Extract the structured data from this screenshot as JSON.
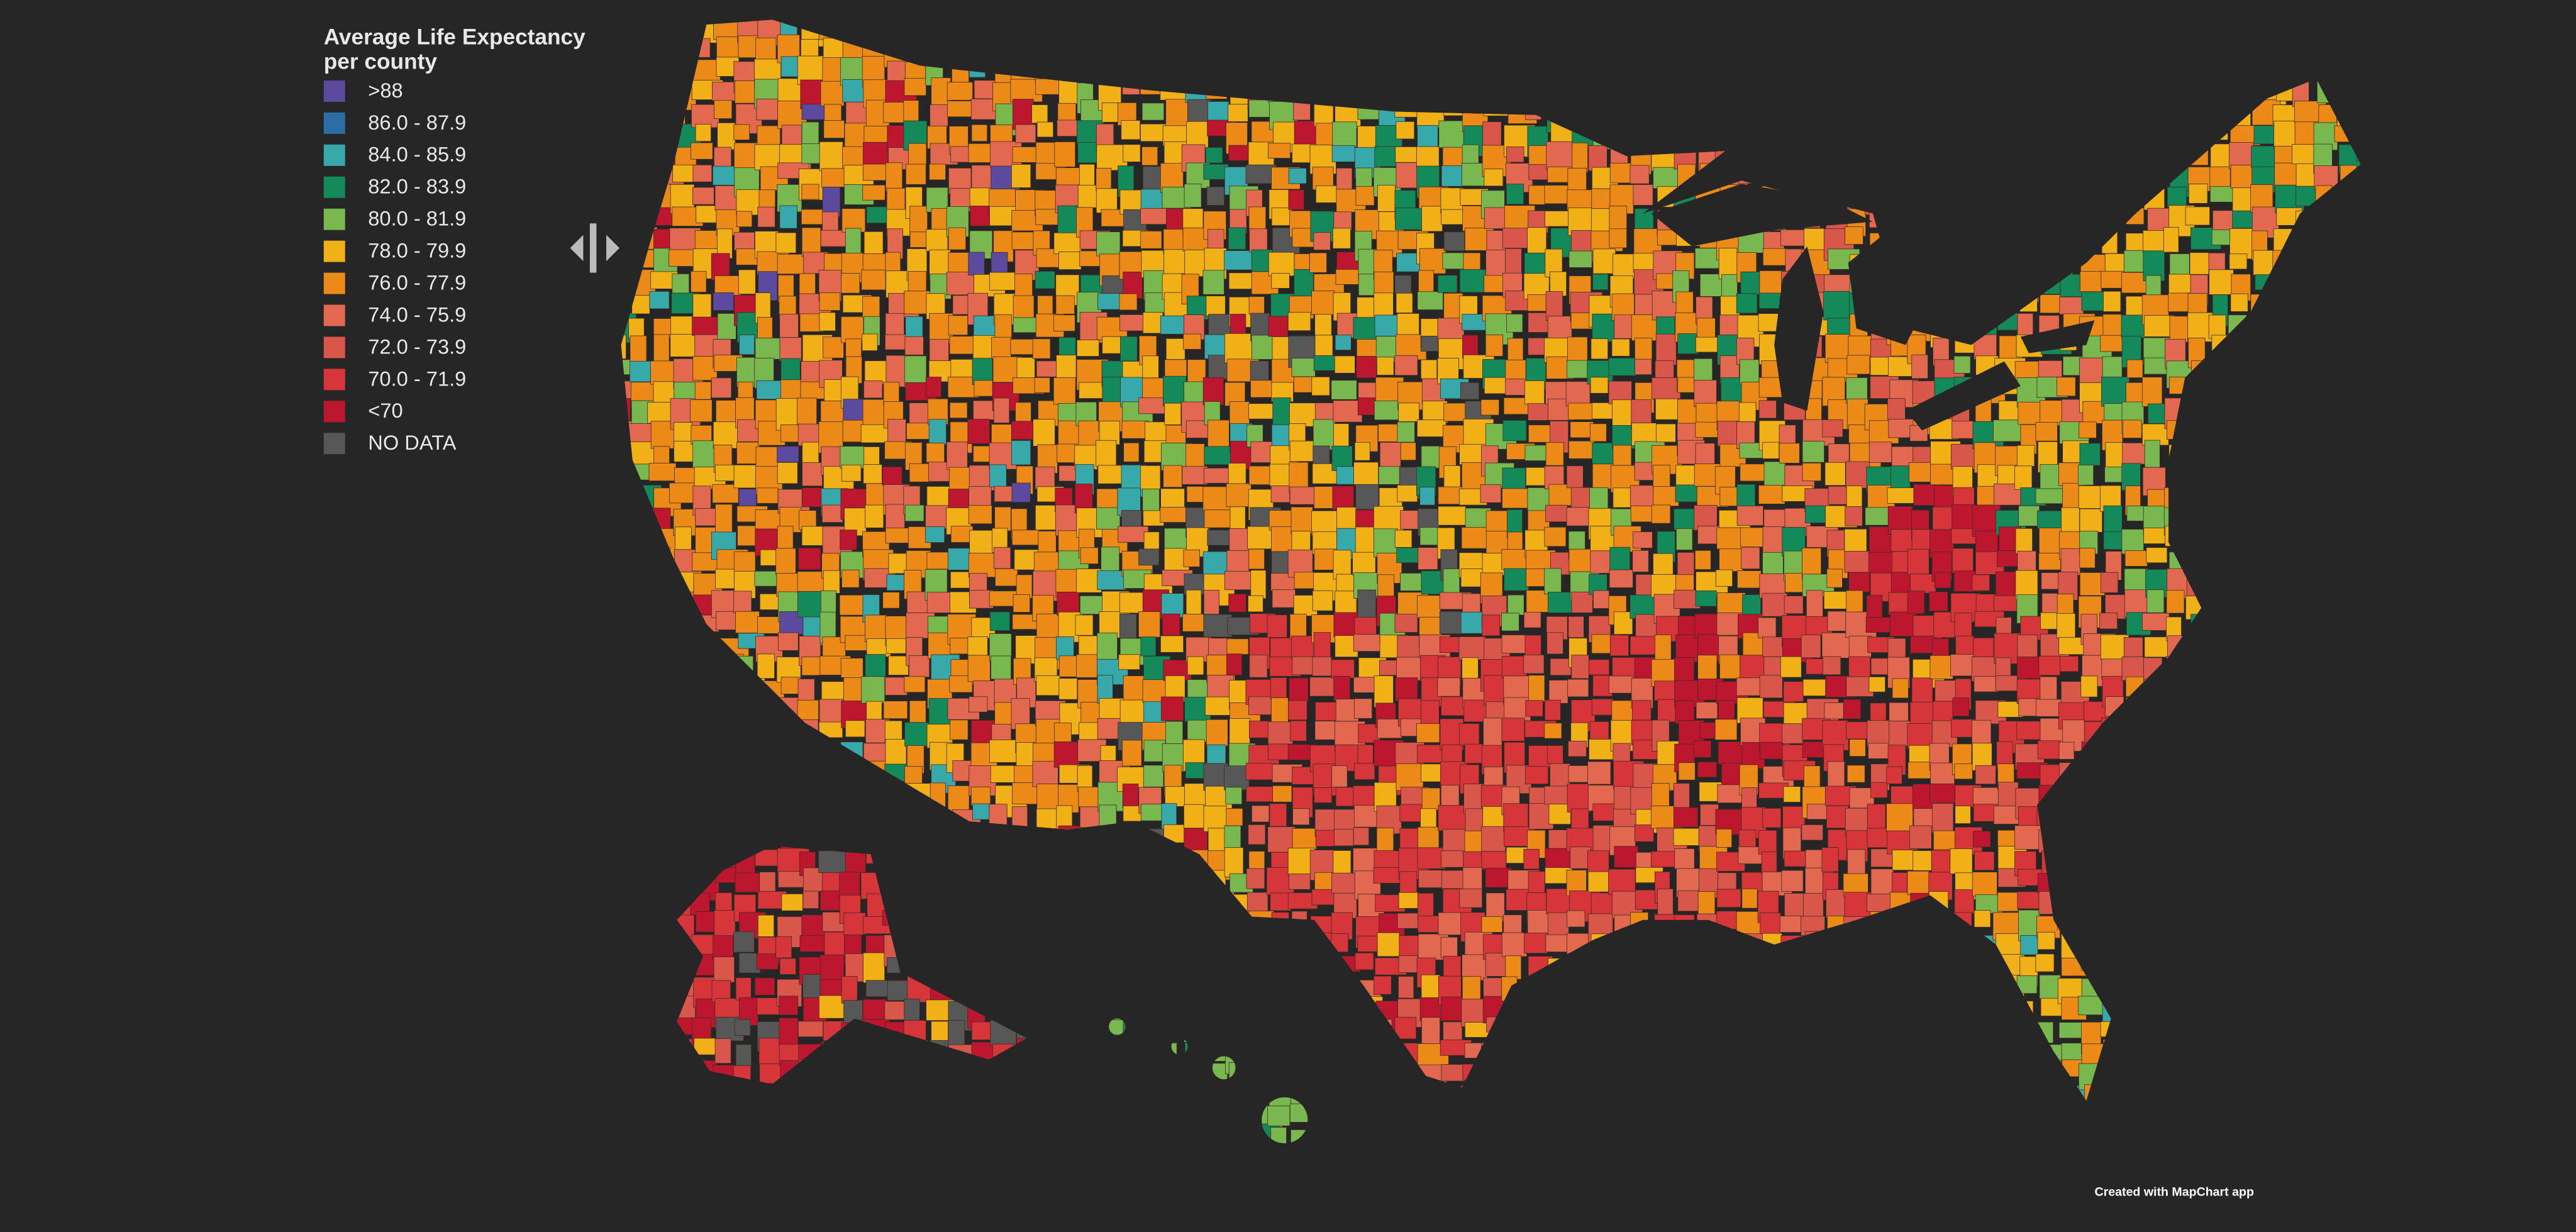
{
  "legend": {
    "title": [
      "Average Life Expectancy",
      "per county"
    ],
    "items": [
      {
        "label": ">88",
        "color": "#5b4a9e"
      },
      {
        "label": "86.0 - 87.9",
        "color": "#2b6ea6"
      },
      {
        "label": "84.0 - 85.9",
        "color": "#38a9aa"
      },
      {
        "label": "82.0 - 83.9",
        "color": "#148a5a"
      },
      {
        "label": "80.0 - 81.9",
        "color": "#78b84f"
      },
      {
        "label": "78.0 - 79.9",
        "color": "#f1b116"
      },
      {
        "label": "76.0 - 77.9",
        "color": "#eb8a17"
      },
      {
        "label": "74.0 - 75.9",
        "color": "#e2684f"
      },
      {
        "label": "72.0 - 73.9",
        "color": "#d9574a"
      },
      {
        "label": "70.0 - 71.9",
        "color": "#d63539"
      },
      {
        "label": "<70",
        "color": "#bd1730"
      },
      {
        "label": "NO DATA",
        "color": "#575757"
      }
    ]
  },
  "credit": "Created with MapChart app"
}
